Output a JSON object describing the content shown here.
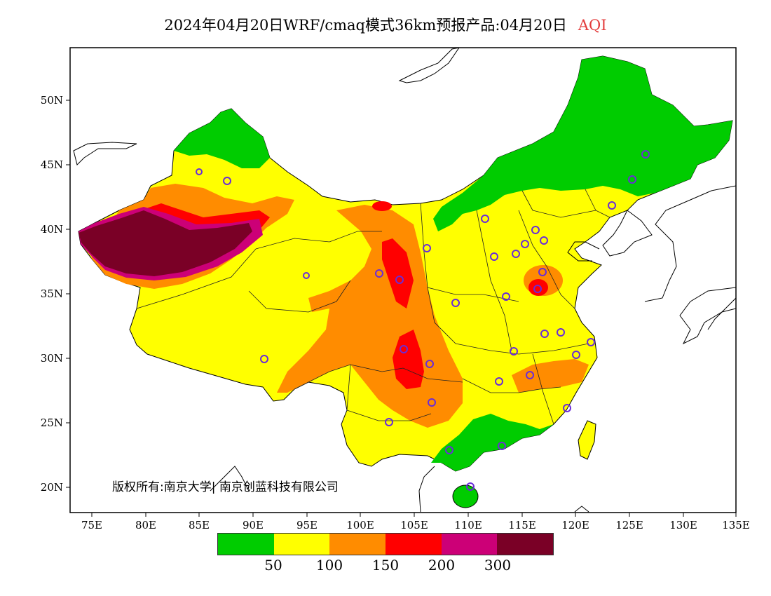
{
  "title": {
    "main": "2024年04月20日WRF/cmaq模式36km预报产品:04月20日",
    "variable": "AQI"
  },
  "y_ticks": [
    "50N",
    "45N",
    "40N",
    "35N",
    "30N",
    "25N",
    "20N"
  ],
  "x_ticks": [
    "75E",
    "80E",
    "85E",
    "90E",
    "95E",
    "100E",
    "105E",
    "110E",
    "115E",
    "120E",
    "125E",
    "130E",
    "135E"
  ],
  "copyright": "版权所有:南京大学| 南京创蓝科技有限公司",
  "legend": {
    "colors": [
      "#00cc00",
      "#ffff00",
      "#ff8c00",
      "#ff0000",
      "#cc0077",
      "#7a0026"
    ],
    "labels": [
      "50",
      "100",
      "150",
      "200",
      "300"
    ]
  }
}
